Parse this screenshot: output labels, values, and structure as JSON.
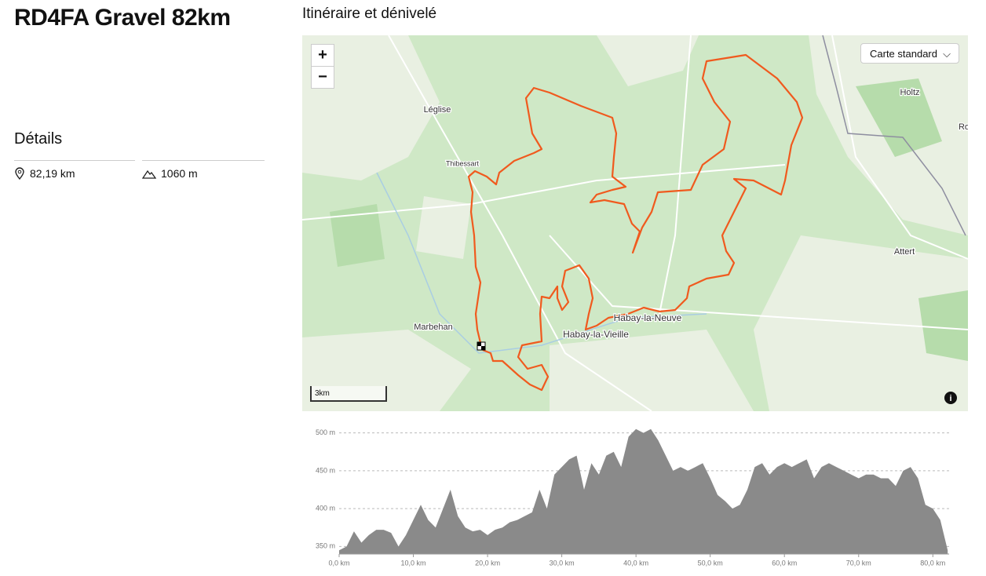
{
  "header": {
    "title": "RD4FA Gravel 82km"
  },
  "details": {
    "heading": "Détails",
    "distance": "82,19 km",
    "elevation_gain": "1060 m"
  },
  "map": {
    "heading": "Itinéraire et dénivelé",
    "map_style": "Carte standard",
    "zoom_in": "+",
    "zoom_out": "−",
    "scale": "3km",
    "places": [
      {
        "label": "Léglise",
        "pos": "557,140"
      },
      {
        "label": "Thibessart",
        "pos": "589,209"
      },
      {
        "label": "Holtz",
        "pos": "1159,118"
      },
      {
        "label": "Ro",
        "pos": "1228,162"
      },
      {
        "label": "Attert",
        "pos": "1152,321"
      },
      {
        "label": "Habay-la-Neuve",
        "pos": "825,406"
      },
      {
        "label": "Habay-la-Vieille",
        "pos": "759,427"
      },
      {
        "label": "Marbehan",
        "pos": "552,417"
      }
    ]
  },
  "chart_data": {
    "type": "area",
    "color": "#8a8a8a",
    "grid": true,
    "x": [
      0,
      1,
      2,
      3,
      4,
      5,
      6,
      7,
      8,
      9,
      10,
      11,
      12,
      13,
      14,
      15,
      16,
      17,
      18,
      19,
      20,
      21,
      22,
      23,
      24,
      25,
      26,
      27,
      28,
      29,
      30,
      31,
      32,
      33,
      34,
      35,
      36,
      37,
      38,
      39,
      40,
      41,
      42,
      43,
      44,
      45,
      46,
      47,
      48,
      49,
      50,
      51,
      52,
      53,
      54,
      55,
      56,
      57,
      58,
      59,
      60,
      61,
      62,
      63,
      64,
      65,
      66,
      67,
      68,
      69,
      70,
      71,
      72,
      73,
      74,
      75,
      76,
      77,
      78,
      79,
      80,
      81,
      82
    ],
    "values": [
      345,
      350,
      370,
      355,
      365,
      372,
      372,
      368,
      350,
      365,
      385,
      405,
      385,
      375,
      400,
      425,
      390,
      375,
      370,
      372,
      365,
      372,
      375,
      382,
      385,
      390,
      395,
      425,
      400,
      445,
      455,
      465,
      470,
      425,
      460,
      445,
      470,
      475,
      455,
      495,
      505,
      500,
      505,
      490,
      470,
      450,
      455,
      450,
      455,
      460,
      440,
      418,
      410,
      400,
      405,
      425,
      455,
      460,
      445,
      455,
      460,
      455,
      460,
      465,
      440,
      455,
      460,
      455,
      450,
      445,
      440,
      445,
      445,
      440,
      440,
      430,
      450,
      455,
      440,
      405,
      400,
      385,
      345
    ],
    "xlim": [
      0,
      82.19
    ],
    "ylim": [
      340,
      510
    ],
    "xticks": [
      {
        "value": 0,
        "label": "0,0 km"
      },
      {
        "value": 10,
        "label": "10,0 km"
      },
      {
        "value": 20,
        "label": "20,0 km"
      },
      {
        "value": 30,
        "label": "30,0 km"
      },
      {
        "value": 40,
        "label": "40,0 km"
      },
      {
        "value": 50,
        "label": "50,0 km"
      },
      {
        "value": 60,
        "label": "60,0 km"
      },
      {
        "value": 70,
        "label": "70,0 km"
      },
      {
        "value": 80,
        "label": "80,0 km"
      }
    ],
    "yticks": [
      {
        "value": 350,
        "label": "350 m"
      },
      {
        "value": 400,
        "label": "400 m"
      },
      {
        "value": 450,
        "label": "450 m"
      },
      {
        "value": 500,
        "label": "500 m"
      }
    ]
  }
}
